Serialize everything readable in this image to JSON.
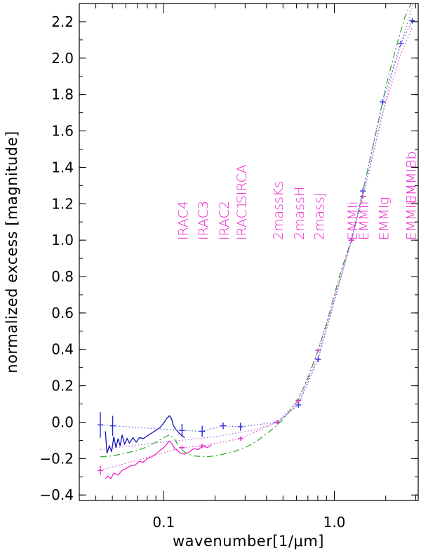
{
  "chart_data": {
    "type": "line",
    "title": "",
    "xlabel": "wavenumber[1/μm]",
    "ylabel": "normalized excess [magnitude]",
    "xscale": "log",
    "xlim": [
      0.032,
      3.1
    ],
    "ylim": [
      -0.43,
      2.3
    ],
    "grid": false,
    "x_ticks": [
      {
        "value": 0.1,
        "label": "0.1"
      },
      {
        "value": 1.0,
        "label": "1.0"
      }
    ],
    "y_ticks": [
      {
        "value": -0.4,
        "label": "−0.4"
      },
      {
        "value": -0.2,
        "label": "−0.2"
      },
      {
        "value": 0.0,
        "label": "0.0"
      },
      {
        "value": 0.2,
        "label": "0.2"
      },
      {
        "value": 0.4,
        "label": "0.4"
      },
      {
        "value": 0.6,
        "label": "0.6"
      },
      {
        "value": 0.8,
        "label": "0.8"
      },
      {
        "value": 1.0,
        "label": "1.0"
      },
      {
        "value": 1.2,
        "label": "1.2"
      },
      {
        "value": 1.4,
        "label": "1.4"
      },
      {
        "value": 1.6,
        "label": "1.6"
      },
      {
        "value": 1.8,
        "label": "1.8"
      },
      {
        "value": 2.0,
        "label": "2.0"
      },
      {
        "value": 2.2,
        "label": "2.2"
      }
    ],
    "band_labels": [
      {
        "text": "IRAC4",
        "x": 0.128
      },
      {
        "text": "IRAC3",
        "x": 0.168
      },
      {
        "text": "IRAC2",
        "x": 0.223
      },
      {
        "text": "IRAC1",
        "x": 0.282
      },
      {
        "text": "SIRCA",
        "x": 0.282,
        "offset": "upper"
      },
      {
        "text": "2massKs",
        "x": 0.463
      },
      {
        "text": "2massH",
        "x": 0.615
      },
      {
        "text": "2massJ",
        "x": 0.803
      },
      {
        "text": "EMMIi",
        "x": 1.26
      },
      {
        "text": "EMMIr",
        "x": 1.47
      },
      {
        "text": "EMMIg",
        "x": 1.92
      },
      {
        "text": "EMMIU",
        "x": 2.78
      },
      {
        "text": "EMMIBb",
        "x": 2.78,
        "offset": "upper"
      }
    ],
    "series": [
      {
        "kind": "points",
        "color": "#2222dd",
        "style": "errorbar",
        "points": [
          {
            "x": 0.0425,
            "y": -0.015,
            "err": 0.07
          },
          {
            "x": 0.0502,
            "y": -0.02,
            "err": 0.055
          },
          {
            "x": 0.128,
            "y": -0.045,
            "err": 0.035
          },
          {
            "x": 0.168,
            "y": -0.05,
            "err": 0.03
          },
          {
            "x": 0.223,
            "y": -0.02,
            "err": 0.018
          },
          {
            "x": 0.282,
            "y": -0.025,
            "err": 0.022
          },
          {
            "x": 0.463,
            "y": 0.0,
            "err": 0.012
          },
          {
            "x": 0.615,
            "y": 0.095,
            "err": 0.015
          },
          {
            "x": 0.803,
            "y": 0.345,
            "err": 0.015
          },
          {
            "x": 1.26,
            "y": 1.0,
            "err": 0.012
          },
          {
            "x": 1.47,
            "y": 1.27,
            "err": 0.015
          },
          {
            "x": 1.92,
            "y": 1.76,
            "err": 0.015
          },
          {
            "x": 2.45,
            "y": 2.08,
            "err": 0.015
          },
          {
            "x": 2.86,
            "y": 2.205,
            "err": 0.015
          }
        ]
      },
      {
        "kind": "points",
        "color": "#ee22cc",
        "style": "errorbar",
        "points": [
          {
            "x": 0.0425,
            "y": -0.265,
            "err": 0.025
          },
          {
            "x": 0.128,
            "y": -0.14,
            "err": 0.012
          },
          {
            "x": 0.168,
            "y": -0.13,
            "err": 0.012
          },
          {
            "x": 0.282,
            "y": -0.09,
            "err": 0.012
          },
          {
            "x": 0.463,
            "y": 0.0,
            "err": 0.01
          },
          {
            "x": 0.615,
            "y": 0.12,
            "err": 0.01
          },
          {
            "x": 0.803,
            "y": 0.395,
            "err": 0.01
          },
          {
            "x": 1.26,
            "y": 1.0,
            "err": 0.01
          },
          {
            "x": 1.47,
            "y": 1.24,
            "err": 0.01
          }
        ]
      },
      {
        "kind": "line",
        "color": "#1111bb",
        "dash": "solid",
        "points": [
          {
            "x": 0.0455,
            "y": -0.05
          },
          {
            "x": 0.0465,
            "y": -0.17
          },
          {
            "x": 0.048,
            "y": -0.13
          },
          {
            "x": 0.0495,
            "y": -0.16
          },
          {
            "x": 0.051,
            "y": -0.08
          },
          {
            "x": 0.0525,
            "y": -0.14
          },
          {
            "x": 0.054,
            "y": -0.09
          },
          {
            "x": 0.0555,
            "y": -0.13
          },
          {
            "x": 0.057,
            "y": -0.07
          },
          {
            "x": 0.059,
            "y": -0.12
          },
          {
            "x": 0.061,
            "y": -0.09
          },
          {
            "x": 0.063,
            "y": -0.115
          },
          {
            "x": 0.066,
            "y": -0.085
          },
          {
            "x": 0.069,
            "y": -0.11
          },
          {
            "x": 0.072,
            "y": -0.085
          },
          {
            "x": 0.076,
            "y": -0.09
          },
          {
            "x": 0.08,
            "y": -0.075
          },
          {
            "x": 0.085,
            "y": -0.06
          },
          {
            "x": 0.09,
            "y": -0.045
          },
          {
            "x": 0.095,
            "y": -0.03
          },
          {
            "x": 0.1,
            "y": -0.005
          },
          {
            "x": 0.104,
            "y": 0.02
          },
          {
            "x": 0.108,
            "y": 0.035
          },
          {
            "x": 0.111,
            "y": 0.02
          },
          {
            "x": 0.114,
            "y": -0.02
          },
          {
            "x": 0.118,
            "y": -0.04
          },
          {
            "x": 0.123,
            "y": -0.06
          },
          {
            "x": 0.128,
            "y": -0.075
          },
          {
            "x": 0.133,
            "y": -0.085
          }
        ]
      },
      {
        "kind": "line",
        "color": "#ee22cc",
        "dash": "solid",
        "points": [
          {
            "x": 0.0455,
            "y": -0.31
          },
          {
            "x": 0.047,
            "y": -0.295
          },
          {
            "x": 0.049,
            "y": -0.31
          },
          {
            "x": 0.051,
            "y": -0.28
          },
          {
            "x": 0.054,
            "y": -0.29
          },
          {
            "x": 0.057,
            "y": -0.265
          },
          {
            "x": 0.06,
            "y": -0.255
          },
          {
            "x": 0.064,
            "y": -0.24
          },
          {
            "x": 0.068,
            "y": -0.235
          },
          {
            "x": 0.072,
            "y": -0.215
          },
          {
            "x": 0.076,
            "y": -0.22
          },
          {
            "x": 0.08,
            "y": -0.2
          },
          {
            "x": 0.085,
            "y": -0.19
          },
          {
            "x": 0.09,
            "y": -0.175
          },
          {
            "x": 0.095,
            "y": -0.155
          },
          {
            "x": 0.1,
            "y": -0.14
          },
          {
            "x": 0.105,
            "y": -0.115
          },
          {
            "x": 0.108,
            "y": -0.105
          },
          {
            "x": 0.112,
            "y": -0.12
          },
          {
            "x": 0.116,
            "y": -0.145
          },
          {
            "x": 0.12,
            "y": -0.155
          },
          {
            "x": 0.126,
            "y": -0.17
          },
          {
            "x": 0.132,
            "y": -0.175
          },
          {
            "x": 0.14,
            "y": -0.165
          },
          {
            "x": 0.15,
            "y": -0.145
          },
          {
            "x": 0.16,
            "y": -0.15
          },
          {
            "x": 0.17,
            "y": -0.13
          },
          {
            "x": 0.18,
            "y": -0.14
          },
          {
            "x": 0.19,
            "y": -0.125
          }
        ]
      },
      {
        "kind": "line",
        "color": "#22aa22",
        "dash": "dashdot",
        "points": [
          {
            "x": 0.0425,
            "y": -0.19
          },
          {
            "x": 0.05,
            "y": -0.185
          },
          {
            "x": 0.06,
            "y": -0.17
          },
          {
            "x": 0.07,
            "y": -0.155
          },
          {
            "x": 0.08,
            "y": -0.135
          },
          {
            "x": 0.09,
            "y": -0.11
          },
          {
            "x": 0.1,
            "y": -0.085
          },
          {
            "x": 0.108,
            "y": -0.07
          },
          {
            "x": 0.115,
            "y": -0.09
          },
          {
            "x": 0.125,
            "y": -0.145
          },
          {
            "x": 0.135,
            "y": -0.17
          },
          {
            "x": 0.15,
            "y": -0.185
          },
          {
            "x": 0.175,
            "y": -0.19
          },
          {
            "x": 0.2,
            "y": -0.185
          },
          {
            "x": 0.25,
            "y": -0.165
          },
          {
            "x": 0.3,
            "y": -0.14
          },
          {
            "x": 0.35,
            "y": -0.105
          },
          {
            "x": 0.4,
            "y": -0.065
          },
          {
            "x": 0.45,
            "y": -0.025
          },
          {
            "x": 0.5,
            "y": 0.015
          },
          {
            "x": 0.6,
            "y": 0.11
          },
          {
            "x": 0.7,
            "y": 0.24
          },
          {
            "x": 0.8,
            "y": 0.39
          },
          {
            "x": 0.9,
            "y": 0.54
          },
          {
            "x": 1.0,
            "y": 0.7
          },
          {
            "x": 1.1,
            "y": 0.84
          },
          {
            "x": 1.26,
            "y": 1.0
          },
          {
            "x": 1.4,
            "y": 1.18
          },
          {
            "x": 1.6,
            "y": 1.42
          },
          {
            "x": 1.8,
            "y": 1.64
          },
          {
            "x": 2.0,
            "y": 1.84
          },
          {
            "x": 2.3,
            "y": 2.06
          },
          {
            "x": 2.6,
            "y": 2.23
          },
          {
            "x": 2.85,
            "y": 2.31
          }
        ]
      },
      {
        "kind": "line",
        "color": "#5555dd",
        "dash": "dotted",
        "points": [
          {
            "x": 0.0425,
            "y": -0.015
          },
          {
            "x": 0.128,
            "y": -0.045
          },
          {
            "x": 0.168,
            "y": -0.05
          },
          {
            "x": 0.223,
            "y": -0.02
          },
          {
            "x": 0.282,
            "y": -0.025
          },
          {
            "x": 0.463,
            "y": 0.0
          },
          {
            "x": 0.615,
            "y": 0.095
          },
          {
            "x": 0.803,
            "y": 0.345
          },
          {
            "x": 1.26,
            "y": 1.0
          },
          {
            "x": 1.47,
            "y": 1.27
          },
          {
            "x": 1.92,
            "y": 1.76
          },
          {
            "x": 2.45,
            "y": 2.08
          },
          {
            "x": 2.86,
            "y": 2.205
          }
        ]
      },
      {
        "kind": "line",
        "color": "#dd44cc",
        "dash": "dotted",
        "points": [
          {
            "x": 0.0425,
            "y": -0.265
          },
          {
            "x": 0.128,
            "y": -0.14
          },
          {
            "x": 0.168,
            "y": -0.13
          },
          {
            "x": 0.282,
            "y": -0.09
          },
          {
            "x": 0.463,
            "y": 0.0
          },
          {
            "x": 0.615,
            "y": 0.12
          },
          {
            "x": 0.803,
            "y": 0.395
          },
          {
            "x": 1.26,
            "y": 1.0
          },
          {
            "x": 1.47,
            "y": 1.24
          },
          {
            "x": 1.92,
            "y": 1.7
          },
          {
            "x": 2.45,
            "y": 2.02
          },
          {
            "x": 2.86,
            "y": 2.17
          }
        ]
      },
      {
        "kind": "line",
        "color": "#aa66dd",
        "dash": "dotted",
        "points": [
          {
            "x": 0.0425,
            "y": -0.15
          },
          {
            "x": 0.1,
            "y": -0.11
          },
          {
            "x": 0.2,
            "y": -0.08
          },
          {
            "x": 0.35,
            "y": -0.04
          },
          {
            "x": 0.463,
            "y": 0.0
          },
          {
            "x": 0.615,
            "y": 0.1
          },
          {
            "x": 0.803,
            "y": 0.36
          },
          {
            "x": 1.26,
            "y": 1.0
          },
          {
            "x": 1.6,
            "y": 1.38
          },
          {
            "x": 2.2,
            "y": 1.93
          },
          {
            "x": 2.9,
            "y": 2.3
          }
        ]
      }
    ]
  }
}
